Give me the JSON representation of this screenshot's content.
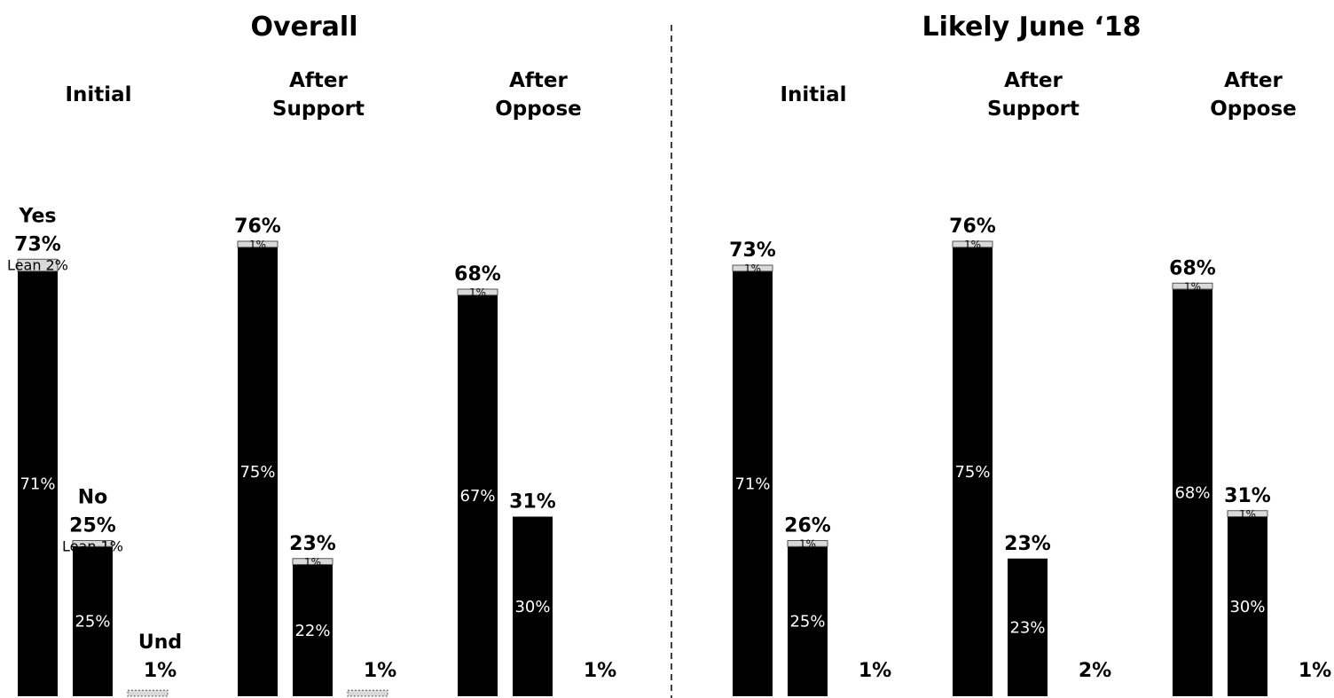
{
  "chart_data": {
    "type": "bar",
    "stacked": true,
    "ylim": [
      0,
      100
    ],
    "grid": false,
    "legend": "none",
    "colors": {
      "bar": "#000000",
      "lean": "#d9d9d9",
      "inner_label": "#ffffff"
    },
    "panels": [
      {
        "title": "Overall",
        "groups": [
          {
            "title": "Initial",
            "bars": [
              {
                "category": "Yes",
                "total": 73,
                "total_label": "73%",
                "base": 71,
                "base_label": "71%",
                "lean": 2,
                "lean_label": "Lean 2%"
              },
              {
                "category": "No",
                "total": 25,
                "total_label": "25%",
                "base": 25,
                "base_label": "25%",
                "lean": 1,
                "lean_label": "Lean 1%"
              },
              {
                "category": "Und",
                "total": 1,
                "total_label": "1%",
                "base": 0,
                "base_label": "",
                "lean": 1,
                "lean_label": ""
              }
            ]
          },
          {
            "title": "After Support",
            "bars": [
              {
                "category": "",
                "total": 76,
                "total_label": "76%",
                "base": 75,
                "base_label": "75%",
                "lean": 1,
                "lean_label": "1%"
              },
              {
                "category": "",
                "total": 23,
                "total_label": "23%",
                "base": 22,
                "base_label": "22%",
                "lean": 1,
                "lean_label": "1%"
              },
              {
                "category": "",
                "total": 1,
                "total_label": "1%",
                "base": 0,
                "base_label": "",
                "lean": 1,
                "lean_label": ""
              }
            ]
          },
          {
            "title": "After Oppose",
            "bars": [
              {
                "category": "",
                "total": 68,
                "total_label": "68%",
                "base": 67,
                "base_label": "67%",
                "lean": 1,
                "lean_label": "1%"
              },
              {
                "category": "",
                "total": 31,
                "total_label": "31%",
                "base": 30,
                "base_label": "30%",
                "lean": 0,
                "lean_label": ""
              },
              {
                "category": "",
                "total": 1,
                "total_label": "1%",
                "base": 0,
                "base_label": "",
                "lean": 0,
                "lean_label": ""
              }
            ]
          }
        ]
      },
      {
        "title": "Likely June ‘18",
        "groups": [
          {
            "title": "Initial",
            "bars": [
              {
                "category": "",
                "total": 73,
                "total_label": "73%",
                "base": 71,
                "base_label": "71%",
                "lean": 1,
                "lean_label": "1%"
              },
              {
                "category": "",
                "total": 26,
                "total_label": "26%",
                "base": 25,
                "base_label": "25%",
                "lean": 1,
                "lean_label": "1%"
              },
              {
                "category": "",
                "total": 1,
                "total_label": "1%",
                "base": 0,
                "base_label": "",
                "lean": 0,
                "lean_label": ""
              }
            ]
          },
          {
            "title": "After Support",
            "bars": [
              {
                "category": "",
                "total": 76,
                "total_label": "76%",
                "base": 75,
                "base_label": "75%",
                "lean": 1,
                "lean_label": "1%"
              },
              {
                "category": "",
                "total": 23,
                "total_label": "23%",
                "base": 23,
                "base_label": "23%",
                "lean": 0,
                "lean_label": ""
              },
              {
                "category": "",
                "total": 2,
                "total_label": "2%",
                "base": 0,
                "base_label": "",
                "lean": 0,
                "lean_label": ""
              }
            ]
          },
          {
            "title": "After Oppose",
            "bars": [
              {
                "category": "",
                "total": 68,
                "total_label": "68%",
                "base": 68,
                "base_label": "68%",
                "lean": 1,
                "lean_label": "1%"
              },
              {
                "category": "",
                "total": 31,
                "total_label": "31%",
                "base": 30,
                "base_label": "30%",
                "lean": 1,
                "lean_label": "1%"
              },
              {
                "category": "",
                "total": 1,
                "total_label": "1%",
                "base": 0,
                "base_label": "",
                "lean": 0,
                "lean_label": ""
              }
            ]
          }
        ]
      }
    ]
  }
}
